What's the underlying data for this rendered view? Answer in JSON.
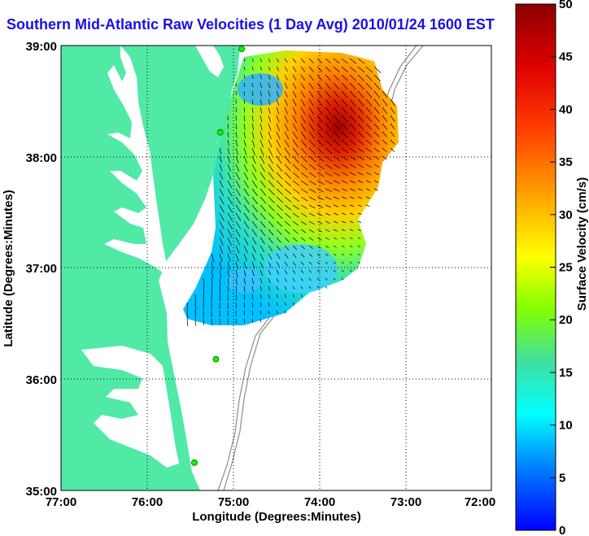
{
  "title": "Southern Mid-Atlantic Raw Velocities (1 Day Avg) 2010/01/24 1600 EST",
  "axes": {
    "xlabel": "Longitude (Degrees:Minutes)",
    "ylabel": "Latitude (Degrees:Minutes)",
    "xticks": [
      "77:00",
      "76:00",
      "75:00",
      "74:00",
      "73:00",
      "72:00"
    ],
    "yticks": [
      "39:00",
      "38:00",
      "37:00",
      "36:00",
      "35:00"
    ]
  },
  "colorbar": {
    "label": "Surface Velocity (cm/s)",
    "ticks": [
      "0",
      "5",
      "10",
      "15",
      "20",
      "25",
      "30",
      "35",
      "40",
      "45",
      "50"
    ],
    "min": 0,
    "max": 50,
    "colors": [
      "#0000ff",
      "#0080ff",
      "#00ffff",
      "#40e0a0",
      "#80ff00",
      "#ffff00",
      "#ffa000",
      "#ff4000",
      "#e00000",
      "#8b0000"
    ]
  },
  "map": {
    "lon_range": [
      -77,
      -72
    ],
    "lat_range": [
      35,
      39
    ],
    "land_color": "#50eaa6",
    "grid": "dotted",
    "stations": [
      {
        "lon": -74.9,
        "lat": 38.97
      },
      {
        "lon": -75.15,
        "lat": 38.22
      },
      {
        "lon": -75.2,
        "lat": 36.18
      },
      {
        "lon": -75.45,
        "lat": 35.25
      }
    ]
  }
}
